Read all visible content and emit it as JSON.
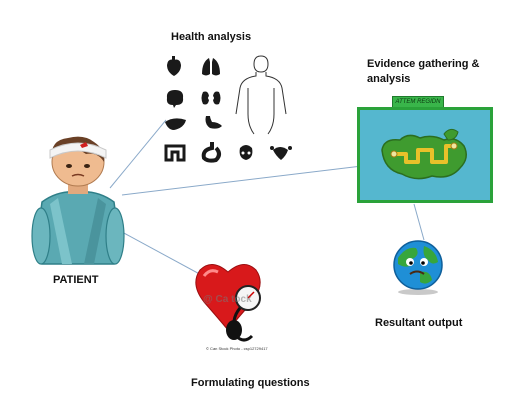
{
  "labels": {
    "health_analysis": "Health analysis",
    "evidence_gathering": "Evidence gathering &",
    "evidence_gathering_2": "analysis",
    "patient": "PATIENT",
    "resultant_output": "Resultant output",
    "formulating_questions": "Formulating questions"
  },
  "map_tab_text": "ATTEM REGIDN",
  "stock_watermark": "© Can Stock Photo - csp12729417",
  "stock_logo": "@ Ca   tock",
  "colors": {
    "connector": "#8aa9c9",
    "icon": "#1a1a1a",
    "heart": "#d8191b",
    "map_border": "#2aa23a",
    "map_water": "#55b7cf",
    "island": "#3f9b2f",
    "path": "#e8c12a",
    "globe_ocean": "#1f8fd6",
    "globe_land": "#37a63c"
  },
  "organ_icons": [
    "heart-icon",
    "lungs-icon",
    "brain-icon",
    "kidneys-icon",
    "liver-icon",
    "stomach-icon",
    "intestine-icon",
    "digestive-icon",
    "bladder-icon",
    "uterus-icon"
  ]
}
